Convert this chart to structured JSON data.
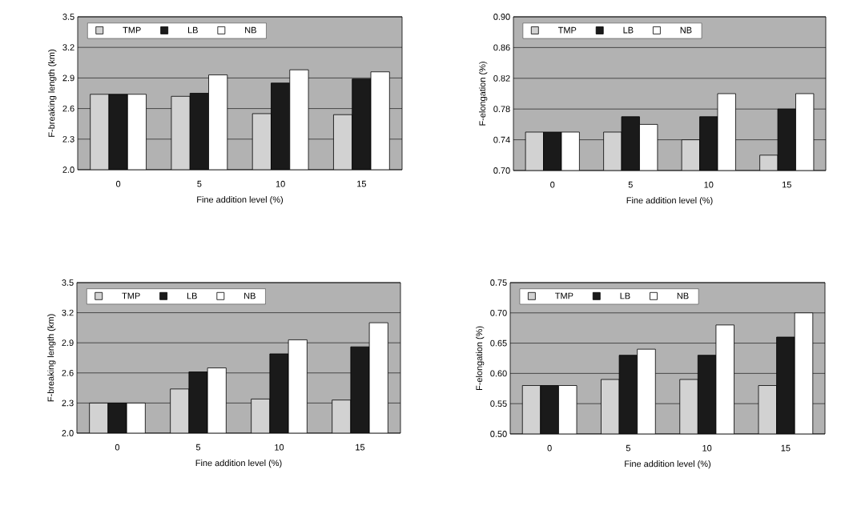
{
  "chart_data": [
    {
      "type": "bar",
      "xlabel": "Fine addition level (%)",
      "ylabel": "F-breaking length (km)",
      "categories": [
        "0",
        "5",
        "10",
        "15"
      ],
      "series": [
        {
          "name": "TMP",
          "color": "#d2d2d2",
          "values": [
            2.74,
            2.72,
            2.55,
            2.54
          ]
        },
        {
          "name": "LB",
          "color": "#1a1a1a",
          "values": [
            2.74,
            2.75,
            2.85,
            2.89
          ]
        },
        {
          "name": "NB",
          "color": "#ffffff",
          "values": [
            2.74,
            2.93,
            2.98,
            2.96
          ]
        }
      ],
      "ylim": [
        2.0,
        3.5
      ],
      "yticks": [
        {
          "value": 2.0,
          "label": "2.0"
        },
        2.3,
        2.6,
        2.9,
        3.2,
        3.5
      ],
      "grid": "y",
      "legend": "top left"
    },
    {
      "type": "bar",
      "xlabel": "Fine addition level (%)",
      "ylabel": "F-elongation (%)",
      "categories": [
        "0",
        "5",
        "10",
        "15"
      ],
      "series": [
        {
          "name": "TMP",
          "color": "#d2d2d2",
          "values": [
            0.75,
            0.75,
            0.74,
            0.72
          ]
        },
        {
          "name": "LB",
          "color": "#1a1a1a",
          "values": [
            0.75,
            0.77,
            0.77,
            0.78
          ]
        },
        {
          "name": "NB",
          "color": "#ffffff",
          "values": [
            0.75,
            0.76,
            0.8,
            0.8
          ]
        }
      ],
      "ylim": [
        0.7,
        0.9
      ],
      "yticks": [
        {
          "value": 0.7,
          "label": "0.70"
        },
        0.74,
        0.78,
        0.82,
        0.86,
        {
          "value": 0.9,
          "label": "0.90"
        }
      ],
      "grid": "y",
      "legend": "top left"
    },
    {
      "type": "bar",
      "xlabel": "Fine addition level (%)",
      "ylabel": "F-breaking length (km)",
      "categories": [
        "0",
        "5",
        "10",
        "15"
      ],
      "series": [
        {
          "name": "TMP",
          "color": "#d2d2d2",
          "values": [
            2.3,
            2.44,
            2.34,
            2.33
          ]
        },
        {
          "name": "LB",
          "color": "#1a1a1a",
          "values": [
            2.3,
            2.61,
            2.79,
            2.86
          ]
        },
        {
          "name": "NB",
          "color": "#ffffff",
          "values": [
            2.3,
            2.65,
            2.93,
            3.1
          ]
        }
      ],
      "ylim": [
        2.0,
        3.5
      ],
      "yticks": [
        {
          "value": 2.0,
          "label": "2.0"
        },
        2.3,
        2.6,
        2.9,
        3.2,
        3.5
      ],
      "grid": "y",
      "legend": "top left"
    },
    {
      "type": "bar",
      "xlabel": "Fine addition level (%)",
      "ylabel": "F-elongation (%)",
      "categories": [
        "0",
        "5",
        "10",
        "15"
      ],
      "series": [
        {
          "name": "TMP",
          "color": "#d2d2d2",
          "values": [
            0.58,
            0.59,
            0.59,
            0.58
          ]
        },
        {
          "name": "LB",
          "color": "#1a1a1a",
          "values": [
            0.58,
            0.63,
            0.63,
            0.66
          ]
        },
        {
          "name": "NB",
          "color": "#ffffff",
          "values": [
            0.58,
            0.64,
            0.68,
            0.7
          ]
        }
      ],
      "ylim": [
        0.5,
        0.75
      ],
      "yticks": [
        {
          "value": 0.5,
          "label": "0.50"
        },
        0.55,
        {
          "value": 0.6,
          "label": "0.60"
        },
        0.65,
        {
          "value": 0.7,
          "label": "0.70"
        },
        0.75
      ],
      "grid": "y",
      "legend": "top left"
    }
  ]
}
